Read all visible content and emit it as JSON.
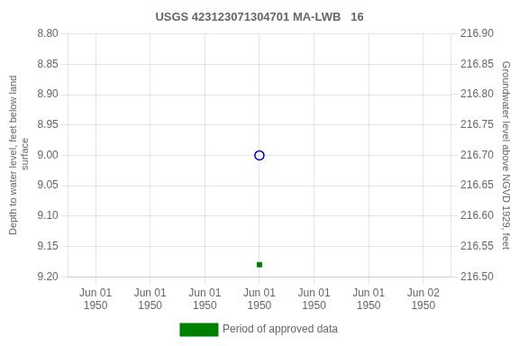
{
  "chart_data": {
    "type": "scatter",
    "title": "USGS 423123071304701 MA-LWB   16",
    "y_label": "Depth to water level, feet below land\n surface",
    "y2_label": "Groundwater level above NGVD 1929, feet",
    "categories": [
      "Jun 01\n1950",
      "Jun 01\n1950",
      "Jun 01\n1950",
      "Jun 01\n1950",
      "Jun 01\n1950",
      "Jun 01\n1950",
      "Jun 02\n1950"
    ],
    "series": [
      {
        "color": "#0000cc",
        "marker": "open_circle",
        "values": [
          null,
          null,
          null,
          9.0,
          null,
          null,
          null
        ]
      },
      {
        "name": "Period of approved data",
        "color": "#008000",
        "marker": "square",
        "values": [
          null,
          null,
          null,
          9.18,
          null,
          null,
          null
        ]
      }
    ],
    "ylim": [
      9.2,
      8.8
    ],
    "yticks": [
      {
        "value": 8.8,
        "label": "8.80"
      },
      {
        "value": 8.85,
        "label": "8.85"
      },
      {
        "value": 8.9,
        "label": "8.90"
      },
      {
        "value": 8.95,
        "label": "8.95"
      },
      {
        "value": 9.0,
        "label": "9.00"
      },
      {
        "value": 9.05,
        "label": "9.05"
      },
      {
        "value": 9.1,
        "label": "9.10"
      },
      {
        "value": 9.15,
        "label": "9.15"
      },
      {
        "value": 9.2,
        "label": "9.20"
      }
    ],
    "y2lim": [
      216.5,
      216.9
    ],
    "y2ticks": [
      {
        "value": 216.9,
        "label": "216.90"
      },
      {
        "value": 216.85,
        "label": "216.85"
      },
      {
        "value": 216.8,
        "label": "216.80"
      },
      {
        "value": 216.75,
        "label": "216.75"
      },
      {
        "value": 216.7,
        "label": "216.70"
      },
      {
        "value": 216.65,
        "label": "216.65"
      },
      {
        "value": 216.6,
        "label": "216.60"
      },
      {
        "value": 216.55,
        "label": "216.55"
      },
      {
        "value": 216.5,
        "label": "216.50"
      }
    ],
    "grid": true,
    "legend": "bottom"
  }
}
